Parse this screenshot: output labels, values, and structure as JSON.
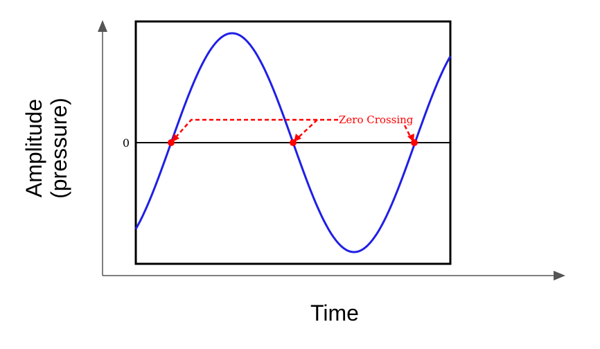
{
  "diagram": {
    "x_axis_title": "Time",
    "y_axis_title_line1": "Amplitude",
    "y_axis_title_line2": "(pressure)",
    "zero_label": "0",
    "annotation": "Zero Crossing",
    "zero_crossing_count": 3,
    "colors": {
      "wave": "#1f1fe6",
      "annotation": "#ff0000",
      "axis": "#555555",
      "frame": "#000000",
      "baseline": "#000000"
    }
  }
}
